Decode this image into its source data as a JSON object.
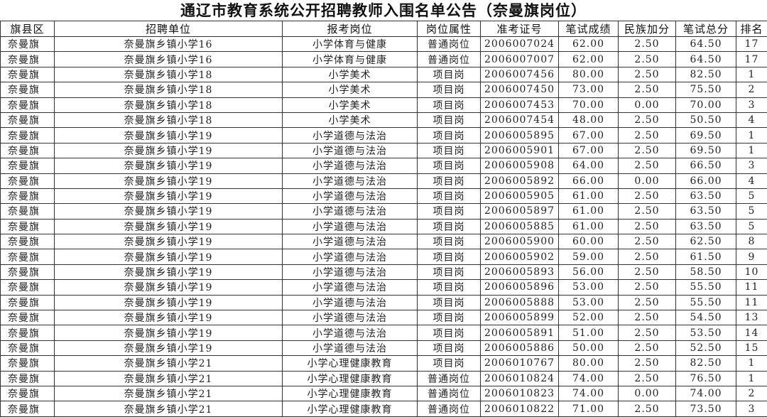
{
  "title": "通辽市教育系统公开招聘教师入围名单公告（奈曼旗岗位）",
  "headers": [
    "旗县区",
    "招聘单位",
    "报考岗位",
    "岗位属性",
    "准考证号",
    "笔试成绩",
    "民族加分",
    "笔试总分",
    "排名"
  ],
  "rows": [
    [
      "奈曼旗",
      "奈曼旗乡镇小学16",
      "小学体育与健康",
      "普通岗位",
      "2006007024",
      "62.00",
      "2.50",
      "64.50",
      "17"
    ],
    [
      "奈曼旗",
      "奈曼旗乡镇小学16",
      "小学体育与健康",
      "普通岗位",
      "2006007007",
      "62.00",
      "2.50",
      "64.50",
      "17"
    ],
    [
      "奈曼旗",
      "奈曼旗乡镇小学18",
      "小学美术",
      "项目岗",
      "2006007456",
      "80.00",
      "2.50",
      "82.50",
      "1"
    ],
    [
      "奈曼旗",
      "奈曼旗乡镇小学18",
      "小学美术",
      "项目岗",
      "2006007450",
      "73.00",
      "2.50",
      "75.50",
      "2"
    ],
    [
      "奈曼旗",
      "奈曼旗乡镇小学18",
      "小学美术",
      "项目岗",
      "2006007453",
      "70.00",
      "0.00",
      "70.00",
      "3"
    ],
    [
      "奈曼旗",
      "奈曼旗乡镇小学18",
      "小学美术",
      "项目岗",
      "2006007454",
      "48.00",
      "2.50",
      "50.50",
      "4"
    ],
    [
      "奈曼旗",
      "奈曼旗乡镇小学19",
      "小学道德与法治",
      "项目岗",
      "2006005895",
      "67.00",
      "2.50",
      "69.50",
      "1"
    ],
    [
      "奈曼旗",
      "奈曼旗乡镇小学19",
      "小学道德与法治",
      "项目岗",
      "2006005901",
      "67.00",
      "2.50",
      "69.50",
      "1"
    ],
    [
      "奈曼旗",
      "奈曼旗乡镇小学19",
      "小学道德与法治",
      "项目岗",
      "2006005908",
      "64.00",
      "2.50",
      "66.50",
      "3"
    ],
    [
      "奈曼旗",
      "奈曼旗乡镇小学19",
      "小学道德与法治",
      "项目岗",
      "2006005892",
      "66.00",
      "0.00",
      "66.00",
      "4"
    ],
    [
      "奈曼旗",
      "奈曼旗乡镇小学19",
      "小学道德与法治",
      "项目岗",
      "2006005905",
      "61.00",
      "2.50",
      "63.50",
      "5"
    ],
    [
      "奈曼旗",
      "奈曼旗乡镇小学19",
      "小学道德与法治",
      "项目岗",
      "2006005897",
      "61.00",
      "2.50",
      "63.50",
      "5"
    ],
    [
      "奈曼旗",
      "奈曼旗乡镇小学19",
      "小学道德与法治",
      "项目岗",
      "2006005885",
      "61.00",
      "2.50",
      "63.50",
      "5"
    ],
    [
      "奈曼旗",
      "奈曼旗乡镇小学19",
      "小学道德与法治",
      "项目岗",
      "2006005900",
      "60.00",
      "2.50",
      "62.50",
      "8"
    ],
    [
      "奈曼旗",
      "奈曼旗乡镇小学19",
      "小学道德与法治",
      "项目岗",
      "2006005902",
      "59.00",
      "2.50",
      "61.50",
      "9"
    ],
    [
      "奈曼旗",
      "奈曼旗乡镇小学19",
      "小学道德与法治",
      "项目岗",
      "2006005893",
      "56.00",
      "2.50",
      "58.50",
      "10"
    ],
    [
      "奈曼旗",
      "奈曼旗乡镇小学19",
      "小学道德与法治",
      "项目岗",
      "2006005896",
      "53.00",
      "2.50",
      "55.50",
      "11"
    ],
    [
      "奈曼旗",
      "奈曼旗乡镇小学19",
      "小学道德与法治",
      "项目岗",
      "2006005888",
      "53.00",
      "2.50",
      "55.50",
      "11"
    ],
    [
      "奈曼旗",
      "奈曼旗乡镇小学19",
      "小学道德与法治",
      "项目岗",
      "2006005899",
      "52.00",
      "2.50",
      "54.50",
      "13"
    ],
    [
      "奈曼旗",
      "奈曼旗乡镇小学19",
      "小学道德与法治",
      "项目岗",
      "2006005891",
      "51.00",
      "2.50",
      "53.50",
      "14"
    ],
    [
      "奈曼旗",
      "奈曼旗乡镇小学19",
      "小学道德与法治",
      "项目岗",
      "2006005886",
      "50.00",
      "2.50",
      "52.50",
      "15"
    ],
    [
      "奈曼旗",
      "奈曼旗乡镇小学21",
      "小学心理健康教育",
      "项目岗",
      "2006010767",
      "80.00",
      "2.50",
      "82.50",
      "1"
    ],
    [
      "奈曼旗",
      "奈曼旗乡镇小学21",
      "小学心理健康教育",
      "普通岗位",
      "2006010824",
      "74.00",
      "2.50",
      "76.50",
      "1"
    ],
    [
      "奈曼旗",
      "奈曼旗乡镇小学21",
      "小学心理健康教育",
      "普通岗位",
      "2006010823",
      "74.00",
      "0.00",
      "74.00",
      "2"
    ],
    [
      "奈曼旗",
      "奈曼旗乡镇小学21",
      "小学心理健康教育",
      "普通岗位",
      "2006010822",
      "71.00",
      "2.50",
      "73.50",
      "3"
    ]
  ]
}
